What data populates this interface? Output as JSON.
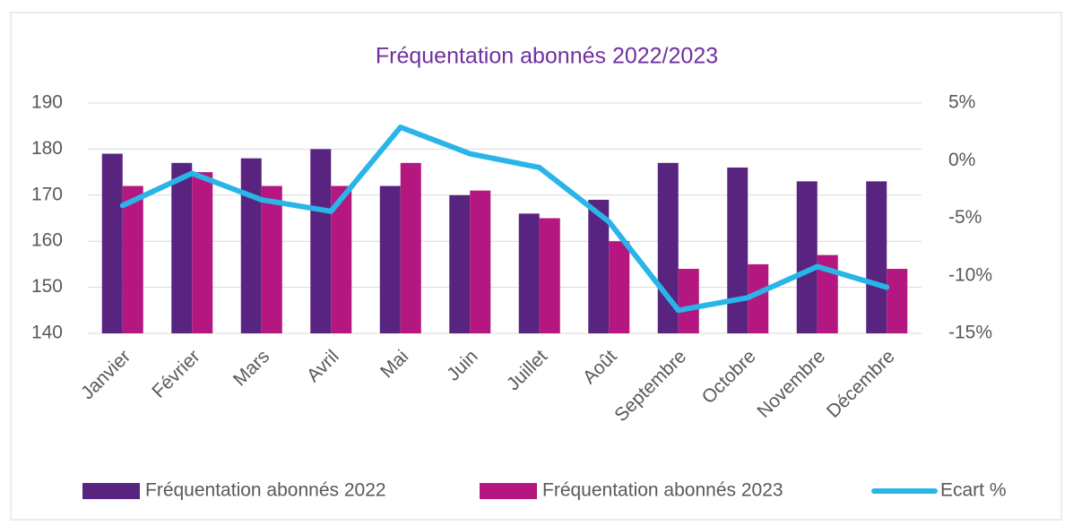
{
  "chart_data": {
    "type": "bar-line",
    "title": "Fréquentation abonnés 2022/2023",
    "categories": [
      "Janvier",
      "Février",
      "Mars",
      "Avril",
      "Mai",
      "Juin",
      "Juillet",
      "Août",
      "Septembre",
      "Octobre",
      "Novembre",
      "Décembre"
    ],
    "series": [
      {
        "name": "Fréquentation abonnés 2022",
        "color": "#582480",
        "type": "bar",
        "values": [
          179,
          177,
          178,
          180,
          172,
          170,
          166,
          169,
          177,
          176,
          173,
          173
        ]
      },
      {
        "name": "Fréquentation abonnés 2023",
        "color": "#b4177f",
        "type": "bar",
        "values": [
          172,
          175,
          172,
          172,
          177,
          171,
          165,
          160,
          154,
          155,
          157,
          154
        ]
      },
      {
        "name": "Ecart %",
        "color": "#29b5e8",
        "type": "line",
        "axis": "y2",
        "values": [
          -3.9,
          -1.1,
          -3.4,
          -4.4,
          2.9,
          0.6,
          -0.6,
          -5.3,
          -13.0,
          -11.9,
          -9.2,
          -11.0
        ]
      }
    ],
    "ylim": [
      140,
      190
    ],
    "yticks": [
      140,
      150,
      160,
      170,
      180,
      190
    ],
    "y2lim": [
      -15,
      5
    ],
    "y2ticks": [
      {
        "value": -15,
        "label": "-15%"
      },
      {
        "value": -10,
        "label": "-10%"
      },
      {
        "value": -5,
        "label": "-5%"
      },
      {
        "value": 0,
        "label": "0%"
      },
      {
        "value": 5,
        "label": "5%"
      }
    ],
    "grid": true,
    "legend": "bottom"
  }
}
